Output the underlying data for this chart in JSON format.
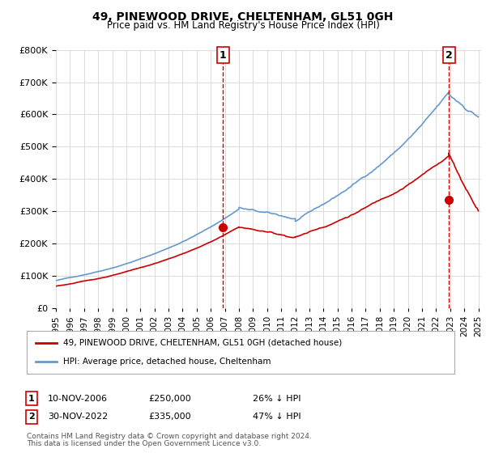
{
  "title": "49, PINEWOOD DRIVE, CHELTENHAM, GL51 0GH",
  "subtitle": "Price paid vs. HM Land Registry's House Price Index (HPI)",
  "ylim": [
    0,
    800000
  ],
  "yticks": [
    0,
    100000,
    200000,
    300000,
    400000,
    500000,
    600000,
    700000,
    800000
  ],
  "sale1_date": "2006-11-10",
  "sale1_price": 250000,
  "sale1_label": "1",
  "sale1_pct": "26% ↓ HPI",
  "sale2_date": "2022-11-30",
  "sale2_price": 335000,
  "sale2_label": "2",
  "sale2_pct": "47% ↓ HPI",
  "sale1_x": 2006.86,
  "sale2_x": 2022.92,
  "legend_sale_label": "49, PINEWOOD DRIVE, CHELTENHAM, GL51 0GH (detached house)",
  "legend_hpi_label": "HPI: Average price, detached house, Cheltenham",
  "footer1": "Contains HM Land Registry data © Crown copyright and database right 2024.",
  "footer2": "This data is licensed under the Open Government Licence v3.0.",
  "sale_color": "#cc0000",
  "hpi_color": "#6699cc",
  "vline_color": "#cc0000",
  "bg_color": "#ffffff",
  "grid_color": "#dddddd",
  "table_border_color": "#cc0000"
}
